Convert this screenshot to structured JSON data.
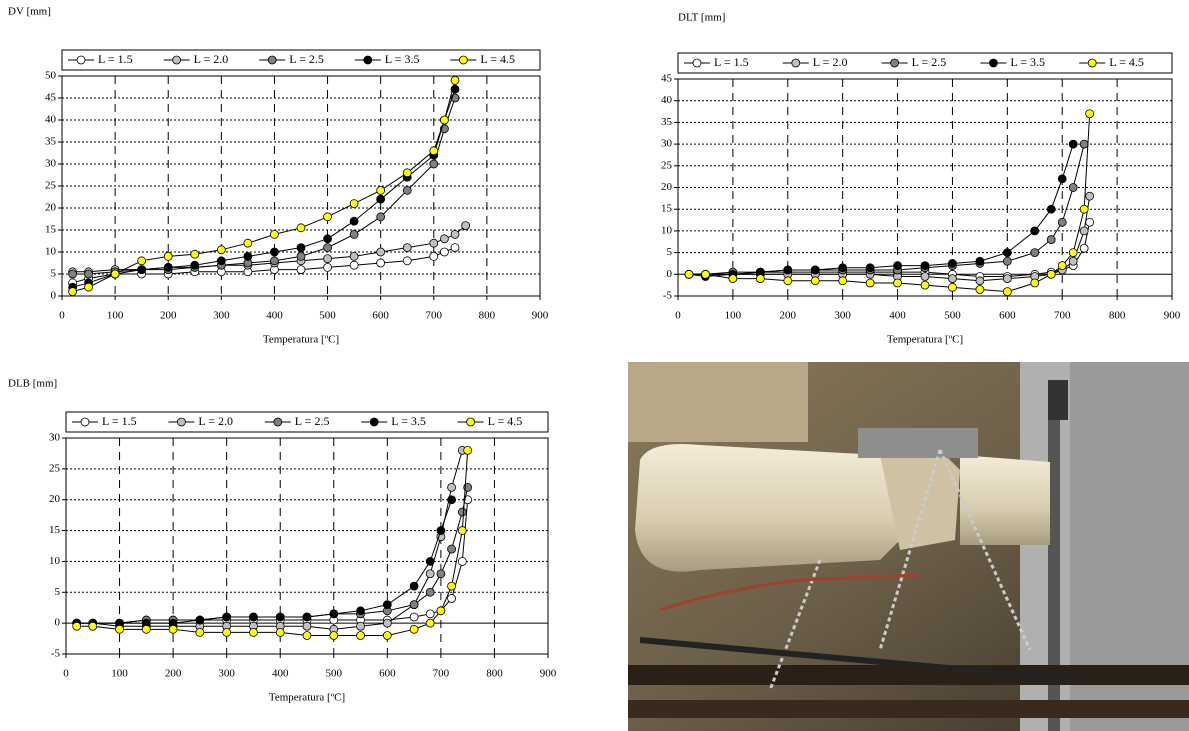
{
  "chart_data": [
    {
      "type": "line",
      "y_label": "DV [mm]",
      "x_label": "Temperatura [ºC]",
      "x": [
        20,
        50,
        100,
        150,
        200,
        250,
        300,
        350,
        400,
        450,
        500,
        550,
        600,
        650,
        700,
        720,
        740,
        760
      ],
      "xlim": [
        0,
        900
      ],
      "xticks": [
        0,
        100,
        200,
        300,
        400,
        500,
        600,
        700,
        800,
        900
      ],
      "ylim": [
        0,
        50
      ],
      "yticks": [
        0,
        5,
        10,
        15,
        20,
        25,
        30,
        35,
        40,
        45,
        50
      ],
      "grid": true,
      "legend": "top",
      "series": [
        {
          "name": "L = 1.5",
          "color": "#ffffff",
          "values": [
            3,
            4,
            5,
            5,
            5,
            5.5,
            5.5,
            5.5,
            6,
            6,
            6.5,
            7,
            7.5,
            8,
            9,
            10,
            11,
            null
          ]
        },
        {
          "name": "L = 2.0",
          "color": "#c0c0c0",
          "values": [
            5.5,
            5.5,
            6,
            6,
            6.5,
            6.5,
            7,
            7,
            7.5,
            8,
            8.5,
            9,
            10,
            11,
            12,
            13,
            14,
            16
          ]
        },
        {
          "name": "L = 2.5",
          "color": "#808080",
          "values": [
            5,
            5,
            5.5,
            6,
            6,
            6.5,
            7,
            7.5,
            8,
            9,
            11,
            14,
            18,
            24,
            30,
            38,
            45,
            null
          ]
        },
        {
          "name": "L = 3.5",
          "color": "#000000",
          "values": [
            2,
            3,
            5,
            6,
            6.5,
            7,
            8,
            9,
            10,
            11,
            13,
            17,
            22,
            27,
            32,
            40,
            47,
            null
          ]
        },
        {
          "name": "L = 4.5",
          "color": "#ffff00",
          "values": [
            1,
            2,
            5,
            8,
            9,
            9.5,
            10.5,
            12,
            14,
            15.5,
            18,
            21,
            24,
            28,
            33,
            40,
            49,
            null
          ]
        }
      ]
    },
    {
      "type": "line",
      "y_label": "DLT [mm]",
      "x_label": "Temperatura [ºC]",
      "x": [
        20,
        50,
        100,
        150,
        200,
        250,
        300,
        350,
        400,
        450,
        500,
        550,
        600,
        650,
        680,
        700,
        720,
        740,
        750
      ],
      "xlim": [
        0,
        900
      ],
      "xticks": [
        0,
        100,
        200,
        300,
        400,
        500,
        600,
        700,
        800,
        900
      ],
      "ylim": [
        -5,
        45
      ],
      "yticks": [
        -5,
        0,
        5,
        10,
        15,
        20,
        25,
        30,
        35,
        40,
        45
      ],
      "grid": true,
      "legend": "top",
      "series": [
        {
          "name": "L = 1.5",
          "color": "#ffffff",
          "values": [
            0,
            0,
            0,
            0.5,
            0.5,
            0.5,
            0.5,
            0.5,
            0.5,
            0.5,
            0,
            -0.5,
            -0.5,
            0,
            0.5,
            1,
            2,
            6,
            12
          ]
        },
        {
          "name": "L = 2.0",
          "color": "#c0c0c0",
          "values": [
            0,
            0,
            0,
            0,
            0,
            0,
            0,
            0,
            -0.5,
            -0.5,
            -1,
            -1.5,
            -1,
            -0.5,
            0,
            1,
            3,
            10,
            18
          ]
        },
        {
          "name": "L = 2.5",
          "color": "#808080",
          "values": [
            0,
            0,
            0.5,
            0.5,
            1,
            1,
            1,
            1,
            1,
            1.5,
            2,
            2.5,
            3,
            5,
            8,
            12,
            20,
            30,
            null
          ]
        },
        {
          "name": "L = 3.5",
          "color": "#000000",
          "values": [
            0,
            -0.5,
            0,
            0.5,
            1,
            1,
            1.5,
            1.5,
            2,
            2,
            2.5,
            3,
            5,
            10,
            15,
            22,
            30,
            null,
            null
          ]
        },
        {
          "name": "L = 4.5",
          "color": "#ffff00",
          "values": [
            0,
            0,
            -1,
            -1,
            -1.5,
            -1.5,
            -1.5,
            -2,
            -2,
            -2.5,
            -3,
            -3.5,
            -4,
            -2,
            0,
            2,
            5,
            15,
            37
          ]
        }
      ]
    },
    {
      "type": "line",
      "y_label": "DLB [mm]",
      "x_label": "Temperatura [ºC]",
      "x": [
        20,
        50,
        100,
        150,
        200,
        250,
        300,
        350,
        400,
        450,
        500,
        550,
        600,
        650,
        680,
        700,
        720,
        740,
        750
      ],
      "xlim": [
        0,
        900
      ],
      "xticks": [
        0,
        100,
        200,
        300,
        400,
        500,
        600,
        700,
        800,
        900
      ],
      "ylim": [
        -5,
        30
      ],
      "yticks": [
        -5,
        0,
        5,
        10,
        15,
        20,
        25,
        30
      ],
      "grid": true,
      "legend": "top",
      "series": [
        {
          "name": "L = 1.5",
          "color": "#ffffff",
          "values": [
            0,
            0,
            0,
            0.5,
            0.5,
            0.5,
            0.5,
            0.5,
            0.5,
            0.5,
            0.5,
            0.5,
            0.5,
            1,
            1.5,
            2,
            4,
            10,
            20
          ]
        },
        {
          "name": "L = 2.0",
          "color": "#c0c0c0",
          "values": [
            0,
            0,
            -0.5,
            -0.5,
            -0.5,
            -0.5,
            -0.5,
            -0.5,
            -0.5,
            -0.5,
            -1,
            -0.5,
            0,
            3,
            8,
            14,
            22,
            28,
            null
          ]
        },
        {
          "name": "L = 2.5",
          "color": "#808080",
          "values": [
            0,
            0,
            0,
            0.5,
            0.5,
            0.5,
            1,
            1,
            1,
            1,
            1.5,
            1.5,
            2,
            3,
            5,
            8,
            12,
            18,
            22
          ]
        },
        {
          "name": "L = 3.5",
          "color": "#000000",
          "values": [
            0,
            0,
            0,
            0,
            0,
            0.5,
            1,
            1,
            1,
            1,
            1.5,
            2,
            3,
            6,
            10,
            15,
            20,
            null,
            null
          ]
        },
        {
          "name": "L = 4.5",
          "color": "#ffff00",
          "values": [
            -0.5,
            -0.5,
            -1,
            -1,
            -1,
            -1.5,
            -1.5,
            -1.5,
            -1.5,
            -2,
            -2,
            -2,
            -2,
            -1,
            0,
            2,
            6,
            15,
            28
          ]
        }
      ]
    }
  ]
}
